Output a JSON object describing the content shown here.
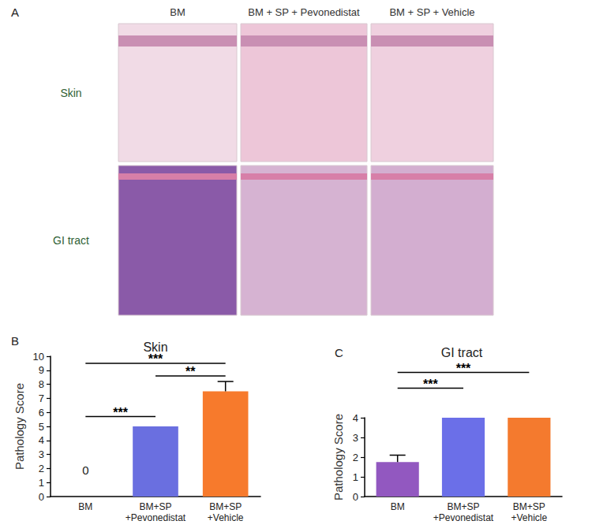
{
  "panel_a": {
    "label": "A",
    "columns": [
      "BM",
      "BM + SP + Pevonedistat",
      "BM + SP + Vehicle"
    ],
    "rows": [
      "Skin",
      "GI tract"
    ]
  },
  "chart_data": [
    {
      "type": "bar",
      "panel": "B",
      "title": "Skin",
      "y_label": "Pathology Score",
      "categories": [
        "BM",
        "BM+SP\n+Pevonedistat",
        "BM+SP\n+Vehicle"
      ],
      "values": [
        0,
        5,
        7.5
      ],
      "errors": [
        0,
        0,
        0.7
      ],
      "value_labels": [
        "0",
        null,
        null
      ],
      "colors": [
        "#8e5fb8",
        "#6a6fe0",
        "#f77a2c"
      ],
      "ylim": [
        0,
        10
      ],
      "yticks": [
        0,
        1,
        2,
        3,
        4,
        5,
        6,
        7,
        8,
        9,
        10
      ],
      "grid": false,
      "significance": [
        {
          "from": 0,
          "to": 2,
          "y": 9.5,
          "label": "***"
        },
        {
          "from": 1,
          "to": 2,
          "y": 8.6,
          "label": "**"
        },
        {
          "from": 0,
          "to": 1,
          "y": 5.7,
          "label": "***"
        }
      ]
    },
    {
      "type": "bar",
      "panel": "C",
      "title": "GI tract",
      "y_label": "Pathology Score",
      "categories": [
        "BM",
        "BM+SP\n+Pevonedistat",
        "BM+SP\n+Vehicle"
      ],
      "values": [
        1.75,
        4,
        4
      ],
      "errors": [
        0.35,
        0,
        0
      ],
      "colors": [
        "#9258c0",
        "#6b6fe8",
        "#f47a2e"
      ],
      "ylim": [
        0,
        4
      ],
      "yticks": [
        0,
        1,
        2,
        3,
        4
      ],
      "grid": false,
      "significance": [
        {
          "from": 0,
          "to": 2,
          "y": 6.3,
          "label": "***"
        },
        {
          "from": 0,
          "to": 1,
          "y": 5.5,
          "label": "***"
        }
      ]
    }
  ]
}
